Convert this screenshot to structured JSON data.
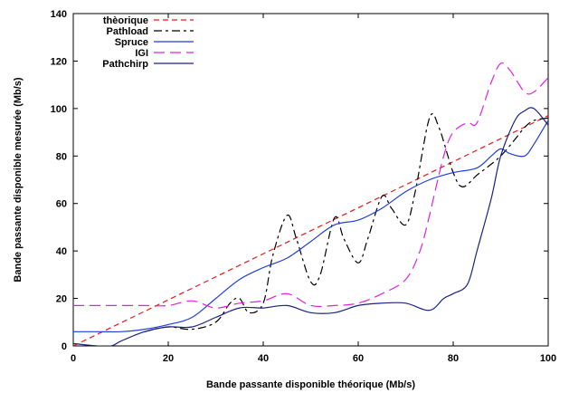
{
  "chart_data": {
    "type": "line",
    "title": "",
    "xlabel": "Bande passante disponible théorique (Mb/s)",
    "ylabel": "Bande passante disponible mesurée (Mb/s)",
    "xlim": [
      0,
      100
    ],
    "ylim": [
      0,
      140
    ],
    "xticks": [
      "0",
      "20",
      "40",
      "60",
      "80",
      "100"
    ],
    "yticks": [
      "0",
      "20",
      "40",
      "60",
      "80",
      "100",
      "120",
      "140"
    ],
    "grid": false,
    "legend_position": "top-left",
    "series": [
      {
        "name": "thèorique",
        "color": "#e41a1c",
        "dash": "6,4",
        "x": [
          0,
          100
        ],
        "y": [
          0,
          97
        ]
      },
      {
        "name": "Pathload",
        "color": "#000000",
        "dash": "9,4,3,4",
        "x": [
          15,
          20,
          25,
          30,
          33,
          35,
          37,
          40,
          42,
          45,
          47,
          50,
          52,
          55,
          57,
          60,
          62,
          65,
          67,
          70,
          72,
          75,
          77,
          80,
          82,
          85,
          87,
          90,
          93,
          95,
          97,
          100
        ],
        "y": [
          6,
          8,
          7,
          10,
          18,
          20,
          14,
          18,
          38,
          55,
          45,
          27,
          30,
          54,
          45,
          35,
          45,
          63,
          58,
          51,
          65,
          96,
          92,
          73,
          67,
          72,
          75,
          80,
          87,
          92,
          95,
          96
        ]
      },
      {
        "name": "Spruce",
        "color": "#1f3fd9",
        "dash": "",
        "x": [
          0,
          5,
          10,
          15,
          20,
          25,
          30,
          35,
          40,
          45,
          50,
          55,
          60,
          65,
          70,
          75,
          80,
          85,
          88,
          90,
          92,
          95,
          97,
          100
        ],
        "y": [
          6,
          6,
          6,
          7,
          9,
          12,
          20,
          28,
          33,
          37,
          44,
          51,
          53,
          58,
          65,
          70,
          73,
          75,
          80,
          83,
          81,
          80,
          85,
          95
        ]
      },
      {
        "name": "IGI",
        "color": "#e020e0",
        "dash": "12,6",
        "x": [
          0,
          5,
          10,
          15,
          20,
          25,
          30,
          35,
          40,
          45,
          50,
          55,
          60,
          65,
          70,
          73,
          75,
          78,
          80,
          83,
          85,
          88,
          90,
          92,
          95,
          97,
          100
        ],
        "y": [
          17,
          17,
          17,
          17,
          17,
          19,
          16,
          18,
          19,
          22,
          17,
          17,
          18,
          22,
          28,
          40,
          55,
          80,
          90,
          94,
          94,
          111,
          119,
          116,
          107,
          107,
          113
        ]
      },
      {
        "name": "Pathchirp",
        "color": "#1a237e",
        "dash": "",
        "x": [
          0,
          5,
          8,
          10,
          15,
          20,
          25,
          30,
          35,
          40,
          45,
          50,
          55,
          60,
          65,
          70,
          75,
          78,
          80,
          83,
          85,
          88,
          90,
          93,
          95,
          97,
          100
        ],
        "y": [
          1,
          0,
          0,
          2,
          6,
          8,
          8,
          12,
          16,
          16,
          17,
          14,
          14,
          17,
          18,
          18,
          15,
          20,
          22,
          26,
          40,
          62,
          80,
          95,
          99,
          100,
          93
        ]
      }
    ]
  }
}
